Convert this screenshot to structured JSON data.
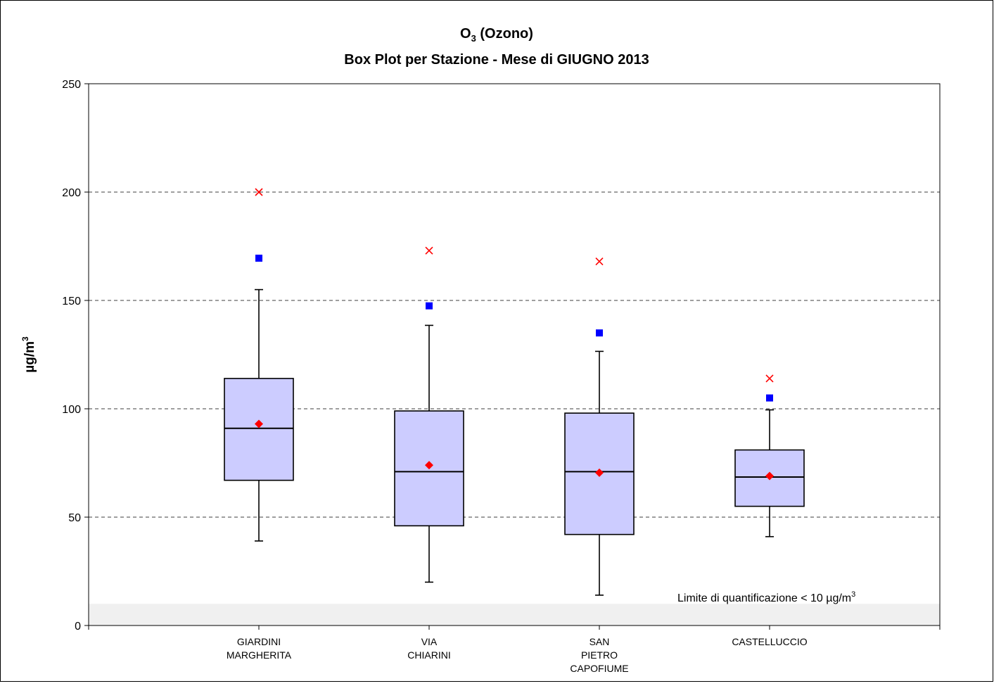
{
  "chart_data": {
    "type": "boxplot",
    "title_main": "O",
    "title_sub": "3",
    "title_rest": " (Ozono)",
    "subtitle": "Box Plot per Stazione - Mese di GIUGNO 2013",
    "ylabel": "µg/m",
    "ylabel_sup": "3",
    "ylim": [
      0,
      250
    ],
    "yticks": [
      0,
      50,
      100,
      150,
      200,
      250
    ],
    "grid": "dashed horizontal",
    "categories": [
      [
        "GIARDINI",
        "MARGHERITA"
      ],
      [
        "VIA",
        "CHIARINI"
      ],
      [
        "SAN",
        "PIETRO",
        "CAPOFIUME"
      ],
      [
        "CASTELLUCCIO"
      ]
    ],
    "boxes": [
      {
        "whisker_low": 39,
        "q1": 67,
        "median": 91,
        "q3": 114,
        "whisker_high": 155,
        "mean": 93,
        "p_square": 169.5,
        "max": 200
      },
      {
        "whisker_low": 20,
        "q1": 46,
        "median": 71,
        "q3": 99,
        "whisker_high": 138.5,
        "mean": 74,
        "p_square": 147.5,
        "max": 173
      },
      {
        "whisker_low": 14,
        "q1": 42,
        "median": 71,
        "q3": 98,
        "whisker_high": 126.5,
        "mean": 70.5,
        "p_square": 135,
        "max": 168
      },
      {
        "whisker_low": 41,
        "q1": 55,
        "median": 68.5,
        "q3": 81,
        "whisker_high": 99.5,
        "mean": 69,
        "p_square": 105,
        "max": 114
      }
    ],
    "quantification_limit": 10,
    "quantification_text": "Limite di quantificazione < 10 µg/m",
    "quantification_sup": "3",
    "colors": {
      "box_fill": "#ccccff",
      "mean_marker": "#ff0000",
      "square_marker": "#0000ff",
      "max_marker": "#ff0000",
      "limit_band": "#f0f0f0"
    }
  }
}
